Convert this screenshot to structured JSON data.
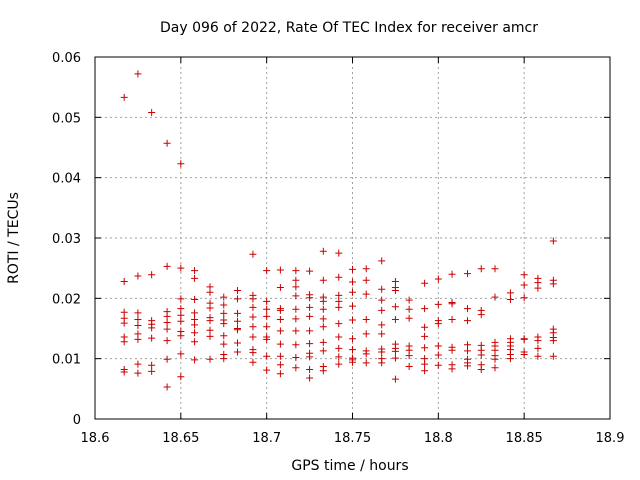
{
  "chart_data": {
    "type": "scatter",
    "title": "Day 096 of 2022, Rate Of TEC Index for receiver amcr",
    "xlabel": "GPS time / hours",
    "ylabel": "ROTI / TECUs",
    "xlim": [
      18.6,
      18.9
    ],
    "ylim": [
      0,
      0.06
    ],
    "x_ticks": [
      18.6,
      18.65,
      18.7,
      18.75,
      18.8,
      18.85,
      18.9
    ],
    "x_tick_labels": [
      "18.6",
      "18.65",
      "18.7",
      "18.75",
      "18.8",
      "18.85",
      "18.9"
    ],
    "y_ticks": [
      0,
      0.01,
      0.02,
      0.03,
      0.04,
      0.05,
      0.06
    ],
    "y_tick_labels": [
      "0",
      "0.01",
      "0.02",
      "0.03",
      "0.04",
      "0.05",
      "0.06"
    ],
    "grid": true,
    "marker": "+",
    "color": "#cc0000",
    "series": [
      {
        "name": "ROTI",
        "points": [
          [
            18.617,
            0.0533
          ],
          [
            18.617,
            0.0228
          ],
          [
            18.617,
            0.0177
          ],
          [
            18.617,
            0.0167
          ],
          [
            18.617,
            0.0159
          ],
          [
            18.617,
            0.0136
          ],
          [
            18.617,
            0.0128
          ],
          [
            18.617,
            0.0082
          ],
          [
            18.617,
            0.0078
          ],
          [
            18.625,
            0.0572
          ],
          [
            18.625,
            0.0237
          ],
          [
            18.625,
            0.0176
          ],
          [
            18.625,
            0.0165
          ],
          [
            18.625,
            0.0155
          ],
          [
            18.625,
            0.0141
          ],
          [
            18.625,
            0.0132
          ],
          [
            18.625,
            0.0091
          ],
          [
            18.625,
            0.0076
          ],
          [
            18.633,
            0.0508
          ],
          [
            18.633,
            0.0239
          ],
          [
            18.633,
            0.0163
          ],
          [
            18.633,
            0.0157
          ],
          [
            18.633,
            0.0151
          ],
          [
            18.633,
            0.0134
          ],
          [
            18.633,
            0.0089
          ],
          [
            18.633,
            0.0079
          ],
          [
            18.642,
            0.0457
          ],
          [
            18.642,
            0.0253
          ],
          [
            18.642,
            0.0178
          ],
          [
            18.642,
            0.017
          ],
          [
            18.642,
            0.016
          ],
          [
            18.642,
            0.0149
          ],
          [
            18.642,
            0.013
          ],
          [
            18.642,
            0.0099
          ],
          [
            18.642,
            0.0053
          ],
          [
            18.65,
            0.0423
          ],
          [
            18.65,
            0.025
          ],
          [
            18.65,
            0.0199
          ],
          [
            18.65,
            0.0183
          ],
          [
            18.65,
            0.0172
          ],
          [
            18.65,
            0.0162
          ],
          [
            18.65,
            0.0145
          ],
          [
            18.65,
            0.0138
          ],
          [
            18.65,
            0.0108
          ],
          [
            18.65,
            0.007
          ],
          [
            18.658,
            0.0246
          ],
          [
            18.658,
            0.0233
          ],
          [
            18.658,
            0.0198
          ],
          [
            18.658,
            0.0176
          ],
          [
            18.658,
            0.0165
          ],
          [
            18.658,
            0.0156
          ],
          [
            18.658,
            0.0143
          ],
          [
            18.658,
            0.0128
          ],
          [
            18.658,
            0.0098
          ],
          [
            18.667,
            0.0219
          ],
          [
            18.667,
            0.021
          ],
          [
            18.667,
            0.0192
          ],
          [
            18.667,
            0.0184
          ],
          [
            18.667,
            0.0168
          ],
          [
            18.667,
            0.0163
          ],
          [
            18.667,
            0.0147
          ],
          [
            18.667,
            0.0137
          ],
          [
            18.667,
            0.0099
          ],
          [
            18.675,
            0.0202
          ],
          [
            18.675,
            0.0189
          ],
          [
            18.675,
            0.0175
          ],
          [
            18.675,
            0.0164
          ],
          [
            18.675,
            0.0158
          ],
          [
            18.675,
            0.0138
          ],
          [
            18.675,
            0.0124
          ],
          [
            18.675,
            0.0107
          ],
          [
            18.675,
            0.01
          ],
          [
            18.683,
            0.0213
          ],
          [
            18.683,
            0.0199
          ],
          [
            18.683,
            0.0175
          ],
          [
            18.683,
            0.0162
          ],
          [
            18.683,
            0.015
          ],
          [
            18.683,
            0.0148
          ],
          [
            18.683,
            0.0126
          ],
          [
            18.683,
            0.0111
          ],
          [
            18.692,
            0.0273
          ],
          [
            18.692,
            0.0205
          ],
          [
            18.692,
            0.0199
          ],
          [
            18.692,
            0.0185
          ],
          [
            18.692,
            0.0169
          ],
          [
            18.692,
            0.0153
          ],
          [
            18.692,
            0.0136
          ],
          [
            18.692,
            0.0115
          ],
          [
            18.692,
            0.011
          ],
          [
            18.692,
            0.0094
          ],
          [
            18.7,
            0.0246
          ],
          [
            18.7,
            0.0195
          ],
          [
            18.7,
            0.0182
          ],
          [
            18.7,
            0.017
          ],
          [
            18.7,
            0.0153
          ],
          [
            18.7,
            0.0136
          ],
          [
            18.7,
            0.0132
          ],
          [
            18.7,
            0.0104
          ],
          [
            18.7,
            0.0081
          ],
          [
            18.708,
            0.0247
          ],
          [
            18.708,
            0.0218
          ],
          [
            18.708,
            0.0183
          ],
          [
            18.708,
            0.018
          ],
          [
            18.708,
            0.0165
          ],
          [
            18.708,
            0.0146
          ],
          [
            18.708,
            0.0124
          ],
          [
            18.708,
            0.0104
          ],
          [
            18.708,
            0.009
          ],
          [
            18.708,
            0.0075
          ],
          [
            18.717,
            0.0246
          ],
          [
            18.717,
            0.023
          ],
          [
            18.717,
            0.0219
          ],
          [
            18.717,
            0.0204
          ],
          [
            18.717,
            0.0182
          ],
          [
            18.717,
            0.0166
          ],
          [
            18.717,
            0.0146
          ],
          [
            18.717,
            0.0123
          ],
          [
            18.717,
            0.0102
          ],
          [
            18.717,
            0.0085
          ],
          [
            18.725,
            0.0245
          ],
          [
            18.725,
            0.0206
          ],
          [
            18.725,
            0.0201
          ],
          [
            18.725,
            0.0185
          ],
          [
            18.725,
            0.017
          ],
          [
            18.725,
            0.0146
          ],
          [
            18.725,
            0.0125
          ],
          [
            18.725,
            0.0109
          ],
          [
            18.725,
            0.0103
          ],
          [
            18.725,
            0.0082
          ],
          [
            18.725,
            0.0068
          ],
          [
            18.733,
            0.0278
          ],
          [
            18.733,
            0.023
          ],
          [
            18.733,
            0.0202
          ],
          [
            18.733,
            0.0195
          ],
          [
            18.733,
            0.0182
          ],
          [
            18.733,
            0.0166
          ],
          [
            18.733,
            0.0153
          ],
          [
            18.733,
            0.0127
          ],
          [
            18.733,
            0.0113
          ],
          [
            18.733,
            0.0087
          ],
          [
            18.733,
            0.008
          ],
          [
            18.742,
            0.0275
          ],
          [
            18.742,
            0.0235
          ],
          [
            18.742,
            0.0205
          ],
          [
            18.742,
            0.0195
          ],
          [
            18.742,
            0.0185
          ],
          [
            18.742,
            0.0158
          ],
          [
            18.742,
            0.0136
          ],
          [
            18.742,
            0.0117
          ],
          [
            18.742,
            0.0103
          ],
          [
            18.742,
            0.0091
          ],
          [
            18.75,
            0.0248
          ],
          [
            18.75,
            0.0227
          ],
          [
            18.75,
            0.021
          ],
          [
            18.75,
            0.0187
          ],
          [
            18.75,
            0.0164
          ],
          [
            18.75,
            0.0133
          ],
          [
            18.75,
            0.0115
          ],
          [
            18.75,
            0.0101
          ],
          [
            18.75,
            0.0098
          ],
          [
            18.75,
            0.0094
          ],
          [
            18.758,
            0.0249
          ],
          [
            18.758,
            0.023
          ],
          [
            18.758,
            0.0207
          ],
          [
            18.758,
            0.0165
          ],
          [
            18.758,
            0.0141
          ],
          [
            18.758,
            0.0113
          ],
          [
            18.758,
            0.0108
          ],
          [
            18.758,
            0.0093
          ],
          [
            18.767,
            0.0262
          ],
          [
            18.767,
            0.0215
          ],
          [
            18.767,
            0.0197
          ],
          [
            18.767,
            0.018
          ],
          [
            18.767,
            0.0156
          ],
          [
            18.767,
            0.0141
          ],
          [
            18.767,
            0.0116
          ],
          [
            18.767,
            0.0111
          ],
          [
            18.767,
            0.01
          ],
          [
            18.767,
            0.0093
          ],
          [
            18.775,
            0.0228
          ],
          [
            18.775,
            0.0218
          ],
          [
            18.775,
            0.0213
          ],
          [
            18.775,
            0.0186
          ],
          [
            18.775,
            0.0165
          ],
          [
            18.775,
            0.0124
          ],
          [
            18.775,
            0.0117
          ],
          [
            18.775,
            0.0112
          ],
          [
            18.775,
            0.0101
          ],
          [
            18.775,
            0.0066
          ],
          [
            18.783,
            0.0197
          ],
          [
            18.783,
            0.0182
          ],
          [
            18.783,
            0.0167
          ],
          [
            18.783,
            0.0121
          ],
          [
            18.783,
            0.0114
          ],
          [
            18.783,
            0.0105
          ],
          [
            18.783,
            0.0087
          ],
          [
            18.792,
            0.0225
          ],
          [
            18.792,
            0.0183
          ],
          [
            18.792,
            0.0152
          ],
          [
            18.792,
            0.0137
          ],
          [
            18.792,
            0.0118
          ],
          [
            18.792,
            0.01
          ],
          [
            18.792,
            0.0091
          ],
          [
            18.792,
            0.008
          ],
          [
            18.8,
            0.0232
          ],
          [
            18.8,
            0.019
          ],
          [
            18.8,
            0.0163
          ],
          [
            18.8,
            0.0158
          ],
          [
            18.8,
            0.0121
          ],
          [
            18.8,
            0.0106
          ],
          [
            18.8,
            0.0089
          ],
          [
            18.808,
            0.024
          ],
          [
            18.808,
            0.0193
          ],
          [
            18.808,
            0.0191
          ],
          [
            18.808,
            0.0165
          ],
          [
            18.808,
            0.0119
          ],
          [
            18.808,
            0.0114
          ],
          [
            18.808,
            0.009
          ],
          [
            18.808,
            0.0083
          ],
          [
            18.817,
            0.0241
          ],
          [
            18.817,
            0.0183
          ],
          [
            18.817,
            0.0163
          ],
          [
            18.817,
            0.0123
          ],
          [
            18.817,
            0.0113
          ],
          [
            18.817,
            0.0099
          ],
          [
            18.817,
            0.0093
          ],
          [
            18.817,
            0.0088
          ],
          [
            18.825,
            0.0249
          ],
          [
            18.825,
            0.018
          ],
          [
            18.825,
            0.0173
          ],
          [
            18.825,
            0.0122
          ],
          [
            18.825,
            0.0114
          ],
          [
            18.825,
            0.0106
          ],
          [
            18.825,
            0.009
          ],
          [
            18.825,
            0.0082
          ],
          [
            18.833,
            0.0249
          ],
          [
            18.833,
            0.0202
          ],
          [
            18.833,
            0.0127
          ],
          [
            18.833,
            0.0121
          ],
          [
            18.833,
            0.0114
          ],
          [
            18.833,
            0.0105
          ],
          [
            18.833,
            0.0099
          ],
          [
            18.833,
            0.0085
          ],
          [
            18.842,
            0.0209
          ],
          [
            18.842,
            0.0198
          ],
          [
            18.842,
            0.0133
          ],
          [
            18.842,
            0.0127
          ],
          [
            18.842,
            0.0121
          ],
          [
            18.842,
            0.0115
          ],
          [
            18.842,
            0.0107
          ],
          [
            18.842,
            0.01
          ],
          [
            18.85,
            0.0239
          ],
          [
            18.85,
            0.0222
          ],
          [
            18.85,
            0.0201
          ],
          [
            18.85,
            0.0133
          ],
          [
            18.85,
            0.0132
          ],
          [
            18.85,
            0.0111
          ],
          [
            18.85,
            0.0107
          ],
          [
            18.858,
            0.0233
          ],
          [
            18.858,
            0.0226
          ],
          [
            18.858,
            0.0217
          ],
          [
            18.858,
            0.0136
          ],
          [
            18.858,
            0.013
          ],
          [
            18.858,
            0.0117
          ],
          [
            18.858,
            0.0104
          ],
          [
            18.867,
            0.0295
          ],
          [
            18.867,
            0.023
          ],
          [
            18.867,
            0.0224
          ],
          [
            18.867,
            0.0149
          ],
          [
            18.867,
            0.0143
          ],
          [
            18.867,
            0.0135
          ],
          [
            18.867,
            0.013
          ],
          [
            18.867,
            0.0104
          ]
        ]
      }
    ]
  }
}
